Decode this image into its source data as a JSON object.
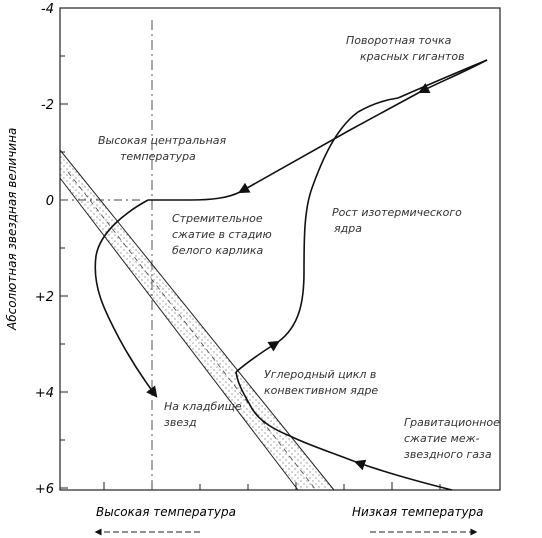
{
  "diagram": {
    "y_axis_label": "Абсолютная звездная величина",
    "y_ticks": [
      "-4",
      "-2",
      "0",
      "+2",
      "+4",
      "+6"
    ],
    "labels": {
      "turning_point": [
        "Поворотная точка",
        "красных гигантов"
      ],
      "high_central_temp": [
        "Высокая центральная",
        "температура"
      ],
      "contraction_white_dwarf": [
        "Стремительное",
        "сжатие в стадию",
        "белого карлика"
      ],
      "isothermal_core_growth": [
        "Рост изотермического",
        "ядра"
      ],
      "hydrogen_cycle": [
        "Углеродный цикл в",
        "конвективном ядре"
      ],
      "star_graveyard": [
        "На кладбище",
        "звезд"
      ],
      "gravitational_contraction": [
        "Гравитационное",
        "сжатие меж-",
        "звездного газа"
      ]
    },
    "bottom_labels": {
      "high_temp": "Высокая температура",
      "low_temp": "Низкая температура"
    }
  }
}
